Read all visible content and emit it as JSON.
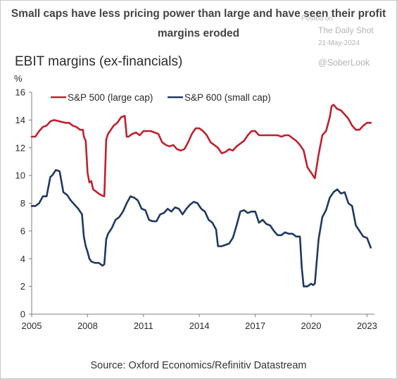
{
  "headline": "Small caps have less pricing power than large and have seen their profit margins eroded",
  "watermark": {
    "posted": "Posted on",
    "source": "The Daily Shot",
    "date": "21-May-2024",
    "handle": "@SoberLook"
  },
  "source_note": "Source: Oxford Economics/Refinitiv Datastream",
  "chart_data": {
    "type": "line",
    "title": "EBIT margins (ex-financials)",
    "ylabel": "%",
    "xlim": [
      2005,
      2023.4
    ],
    "ylim": [
      0,
      16
    ],
    "yticks": [
      0,
      2,
      4,
      6,
      8,
      10,
      12,
      14,
      16
    ],
    "xticks": [
      2005,
      2008,
      2011,
      2014,
      2017,
      2020,
      2023
    ],
    "grid": false,
    "legend_position": "top-left",
    "series": [
      {
        "name": "S&P 500 (large cap)",
        "color": "#c0202e",
        "x": [
          2005.0,
          2005.2,
          2005.4,
          2005.6,
          2005.8,
          2006.0,
          2006.2,
          2006.5,
          2006.8,
          2007.0,
          2007.2,
          2007.4,
          2007.6,
          2007.75,
          2007.8,
          2007.9,
          2008.0,
          2008.1,
          2008.2,
          2008.3,
          2008.5,
          2008.7,
          2008.9,
          2009.0,
          2009.1,
          2009.2,
          2009.4,
          2009.6,
          2009.8,
          2010.0,
          2010.1,
          2010.2,
          2010.4,
          2010.6,
          2010.8,
          2011.0,
          2011.2,
          2011.4,
          2011.6,
          2011.8,
          2012.0,
          2012.2,
          2012.4,
          2012.6,
          2012.8,
          2013.0,
          2013.2,
          2013.4,
          2013.6,
          2013.8,
          2014.0,
          2014.2,
          2014.4,
          2014.6,
          2014.8,
          2015.0,
          2015.2,
          2015.4,
          2015.6,
          2015.8,
          2016.0,
          2016.2,
          2016.4,
          2016.6,
          2016.8,
          2017.0,
          2017.2,
          2017.4,
          2017.6,
          2017.8,
          2018.0,
          2018.2,
          2018.4,
          2018.6,
          2018.8,
          2019.0,
          2019.2,
          2019.4,
          2019.6,
          2019.8,
          2020.0,
          2020.2,
          2020.4,
          2020.6,
          2020.8,
          2021.0,
          2021.1,
          2021.2,
          2021.4,
          2021.6,
          2021.8,
          2022.0,
          2022.2,
          2022.4,
          2022.6,
          2022.8,
          2023.0,
          2023.2
        ],
        "values": [
          12.8,
          12.8,
          13.2,
          13.5,
          13.6,
          13.9,
          14.0,
          13.9,
          13.8,
          13.8,
          13.6,
          13.5,
          13.3,
          13.3,
          12.8,
          12.5,
          10.2,
          9.5,
          9.6,
          9.0,
          8.8,
          8.6,
          8.5,
          12.6,
          13.0,
          13.2,
          13.6,
          13.8,
          14.2,
          14.3,
          12.8,
          12.8,
          13.0,
          13.1,
          12.9,
          13.2,
          13.2,
          13.2,
          13.1,
          13.0,
          12.4,
          12.2,
          12.1,
          12.2,
          11.9,
          11.8,
          11.9,
          12.4,
          13.0,
          13.4,
          13.4,
          13.2,
          12.9,
          12.4,
          12.2,
          12.0,
          11.6,
          11.7,
          11.9,
          11.8,
          12.1,
          12.3,
          12.5,
          12.9,
          13.2,
          13.2,
          12.9,
          12.9,
          12.9,
          12.9,
          12.9,
          12.9,
          12.8,
          12.9,
          12.9,
          12.7,
          12.5,
          12.2,
          11.8,
          10.6,
          10.2,
          9.8,
          11.5,
          12.9,
          13.2,
          14.2,
          15.0,
          15.1,
          14.8,
          14.7,
          14.4,
          14.1,
          13.6,
          13.3,
          13.3,
          13.6,
          13.8,
          13.8
        ]
      },
      {
        "name": "S&P 600 (small cap)",
        "color": "#1f3864",
        "x": [
          2005.0,
          2005.2,
          2005.4,
          2005.6,
          2005.8,
          2006.0,
          2006.1,
          2006.3,
          2006.5,
          2006.7,
          2006.9,
          2007.1,
          2007.3,
          2007.5,
          2007.7,
          2007.8,
          2007.9,
          2008.0,
          2008.1,
          2008.2,
          2008.4,
          2008.6,
          2008.8,
          2008.9,
          2009.0,
          2009.1,
          2009.3,
          2009.5,
          2009.7,
          2009.9,
          2010.1,
          2010.3,
          2010.5,
          2010.7,
          2010.9,
          2011.1,
          2011.3,
          2011.5,
          2011.7,
          2011.9,
          2012.1,
          2012.3,
          2012.5,
          2012.7,
          2012.9,
          2013.1,
          2013.3,
          2013.5,
          2013.7,
          2013.9,
          2014.1,
          2014.3,
          2014.5,
          2014.7,
          2014.9,
          2015.0,
          2015.2,
          2015.4,
          2015.6,
          2015.8,
          2016.0,
          2016.2,
          2016.4,
          2016.6,
          2016.8,
          2017.0,
          2017.2,
          2017.4,
          2017.6,
          2017.8,
          2018.0,
          2018.2,
          2018.4,
          2018.6,
          2018.8,
          2019.0,
          2019.2,
          2019.4,
          2019.5,
          2019.6,
          2019.8,
          2020.0,
          2020.1,
          2020.2,
          2020.4,
          2020.6,
          2020.8,
          2021.0,
          2021.2,
          2021.4,
          2021.6,
          2021.8,
          2022.0,
          2022.2,
          2022.4,
          2022.6,
          2022.8,
          2023.0,
          2023.2
        ],
        "values": [
          7.8,
          7.8,
          8.0,
          8.5,
          8.5,
          9.9,
          10.0,
          10.4,
          10.3,
          8.8,
          8.6,
          8.2,
          7.9,
          7.6,
          7.2,
          5.6,
          4.9,
          4.5,
          4.0,
          3.8,
          3.7,
          3.7,
          3.5,
          3.6,
          5.4,
          5.8,
          6.2,
          6.8,
          7.0,
          7.4,
          8.0,
          8.5,
          8.4,
          8.2,
          7.6,
          7.5,
          6.8,
          6.7,
          6.7,
          7.2,
          7.3,
          7.6,
          7.4,
          7.7,
          7.6,
          7.2,
          7.6,
          7.9,
          8.1,
          8.0,
          7.6,
          7.4,
          6.8,
          6.6,
          6.1,
          4.9,
          4.9,
          5.0,
          5.1,
          5.5,
          6.4,
          7.4,
          7.5,
          7.3,
          7.4,
          7.4,
          6.6,
          6.8,
          6.5,
          6.4,
          6.0,
          5.7,
          5.7,
          5.9,
          5.8,
          5.8,
          5.6,
          5.6,
          3.3,
          2.0,
          2.0,
          2.2,
          2.1,
          2.2,
          5.4,
          7.0,
          7.5,
          8.4,
          8.8,
          9.0,
          8.7,
          8.8,
          8.0,
          7.8,
          6.4,
          6.0,
          5.6,
          5.5,
          4.8
        ]
      }
    ]
  }
}
